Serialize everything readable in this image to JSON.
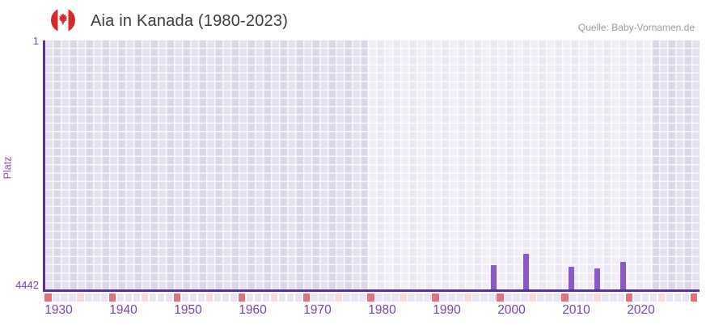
{
  "header": {
    "title": "Aia in Kanada (1980-2023)",
    "source": "Quelle: Baby-Vornamen.de",
    "flag_icon": "canada-flag-icon"
  },
  "chart_data": {
    "type": "bar",
    "title": "Aia in Kanada (1980-2023)",
    "ylabel": "Platz",
    "xlabel": "",
    "y_axis": {
      "top_label": "1",
      "bottom_label": "4442",
      "min": 1,
      "max": 4442,
      "inverted": true
    },
    "x_ticks": [
      1930,
      1940,
      1950,
      1960,
      1970,
      1980,
      1990,
      2000,
      2010,
      2020
    ],
    "x_range_years": [
      1928,
      2029
    ],
    "highlight_period": [
      1980,
      2023
    ],
    "grid": true,
    "legend": "none",
    "series": [
      {
        "name": "Platz",
        "points": [
          {
            "year": 1997,
            "rank": 3990
          },
          {
            "year": 2002,
            "rank": 3800
          },
          {
            "year": 2009,
            "rank": 4030
          },
          {
            "year": 2013,
            "rank": 4060
          },
          {
            "year": 2017,
            "rank": 3940
          }
        ]
      }
    ],
    "colors": {
      "bar": "#8a58c8",
      "axis": "#5530a0",
      "tick_label": "#7b44ad",
      "ylabel_text": "#8a4ab8",
      "title_text": "#3c3c3c",
      "source_text": "#9c9c9c",
      "plot_bg": "#dcd6e9",
      "ribbon_base": "#eae5f4",
      "ribbon_red": "#e4707b",
      "ribbon_pink": "#f6d9e1",
      "flag_red": "#d32b2b"
    },
    "ribbon_pattern": {
      "cells": 81,
      "red_every": 8,
      "pink_offset": 4
    }
  }
}
